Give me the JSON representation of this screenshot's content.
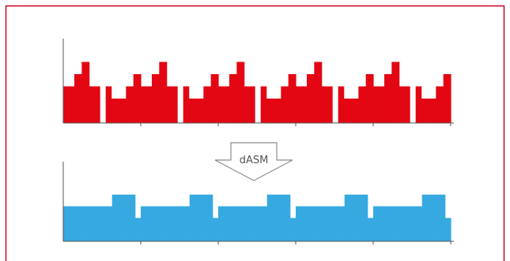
{
  "colors": {
    "border": "#c8001e",
    "top_fill": "#e30613",
    "bottom_fill": "#36a9e1",
    "axis": "#555555",
    "arrow_stroke": "#8c8c8c",
    "label_text": "#555555"
  },
  "arrow": {
    "label": "dASM"
  },
  "chart_data": [
    {
      "type": "area",
      "title": "",
      "repeats": 5,
      "values": [
        3,
        3,
        3,
        4,
        4,
        5,
        5,
        3,
        3,
        3,
        3,
        3,
        3,
        2,
        2,
        2,
        2,
        3,
        3,
        4,
        4
      ]
    },
    {
      "type": "area",
      "title": "",
      "repeats": 5,
      "values": [
        3,
        3,
        3,
        3,
        3,
        3,
        3,
        3,
        3,
        3,
        3,
        3,
        3,
        3,
        3,
        3,
        3,
        4,
        4,
        4,
        4,
        4,
        4,
        4,
        4,
        2,
        2
      ]
    }
  ]
}
